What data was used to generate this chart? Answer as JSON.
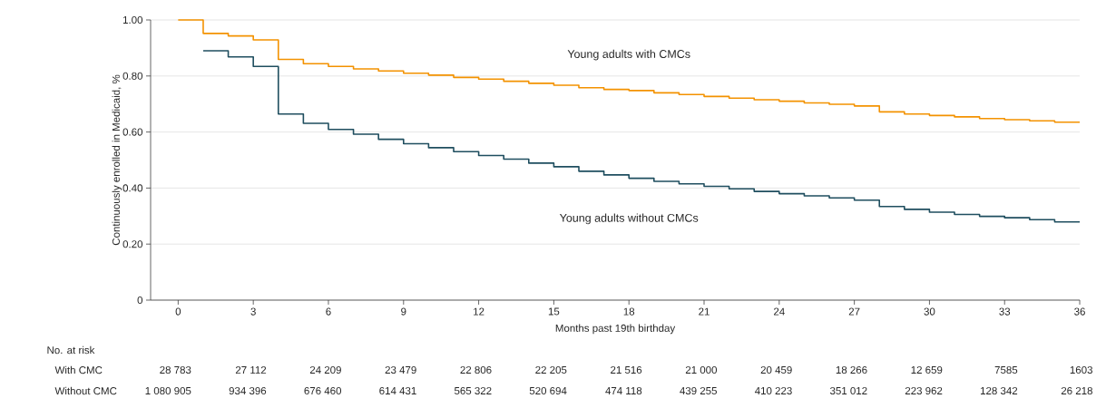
{
  "chart_data": {
    "type": "step",
    "xlabel": "Months past 19th birthday",
    "ylabel": "Continuously enrolled in Medicaid, %",
    "x": [
      0,
      1,
      2,
      3,
      4,
      5,
      6,
      7,
      8,
      9,
      10,
      11,
      12,
      13,
      14,
      15,
      16,
      17,
      18,
      19,
      20,
      21,
      22,
      23,
      24,
      25,
      26,
      27,
      28,
      29,
      30,
      31,
      32,
      33,
      34,
      35,
      36
    ],
    "series": [
      {
        "name": "Young adults with CMCs",
        "color": "#f39200",
        "values": [
          1.0,
          0.952,
          0.943,
          0.929,
          0.859,
          0.844,
          0.834,
          0.825,
          0.818,
          0.81,
          0.803,
          0.795,
          0.789,
          0.781,
          0.774,
          0.767,
          0.758,
          0.752,
          0.748,
          0.74,
          0.734,
          0.727,
          0.721,
          0.715,
          0.71,
          0.704,
          0.699,
          0.693,
          0.672,
          0.664,
          0.659,
          0.654,
          0.648,
          0.644,
          0.64,
          0.635,
          0.635
        ]
      },
      {
        "name": "Young adults without CMCs",
        "color": "#1f4e5f",
        "values": [
          null,
          0.89,
          0.868,
          0.834,
          0.664,
          0.631,
          0.609,
          0.592,
          0.574,
          0.558,
          0.544,
          0.53,
          0.516,
          0.503,
          0.489,
          0.476,
          0.46,
          0.447,
          0.435,
          0.424,
          0.415,
          0.406,
          0.397,
          0.388,
          0.38,
          0.372,
          0.365,
          0.357,
          0.334,
          0.324,
          0.314,
          0.306,
          0.299,
          0.294,
          0.287,
          0.279,
          0.279
        ]
      }
    ],
    "xlim": [
      -1.1,
      36
    ],
    "ylim": [
      0,
      1
    ],
    "xticks": [
      0,
      3,
      6,
      9,
      12,
      15,
      18,
      21,
      24,
      27,
      30,
      33,
      36
    ],
    "yticks": [
      {
        "value": 0,
        "label": "0"
      },
      {
        "value": 0.2,
        "label": "0.20"
      },
      {
        "value": 0.4,
        "label": "0.40"
      },
      {
        "value": 0.6,
        "label": "0.60"
      },
      {
        "value": 0.8,
        "label": "0.80"
      },
      {
        "value": 1.0,
        "label": "1.00"
      }
    ],
    "grid": "y",
    "legend": false,
    "annotations": [
      "No. at risk",
      "With CMC",
      "28 783",
      "27 112",
      "24 209",
      "23 479",
      "22 806",
      "22 205",
      "21 516",
      "21 000",
      "20 459",
      "18 266",
      "12 659",
      "7585",
      "1603",
      "Without CMC",
      "1 080 905",
      "934 396",
      "676 460",
      "614 431",
      "565 322",
      "520 694",
      "474 118",
      "439 255",
      "410 223",
      "351 012",
      "223 962",
      "128 342",
      "26 218"
    ]
  }
}
